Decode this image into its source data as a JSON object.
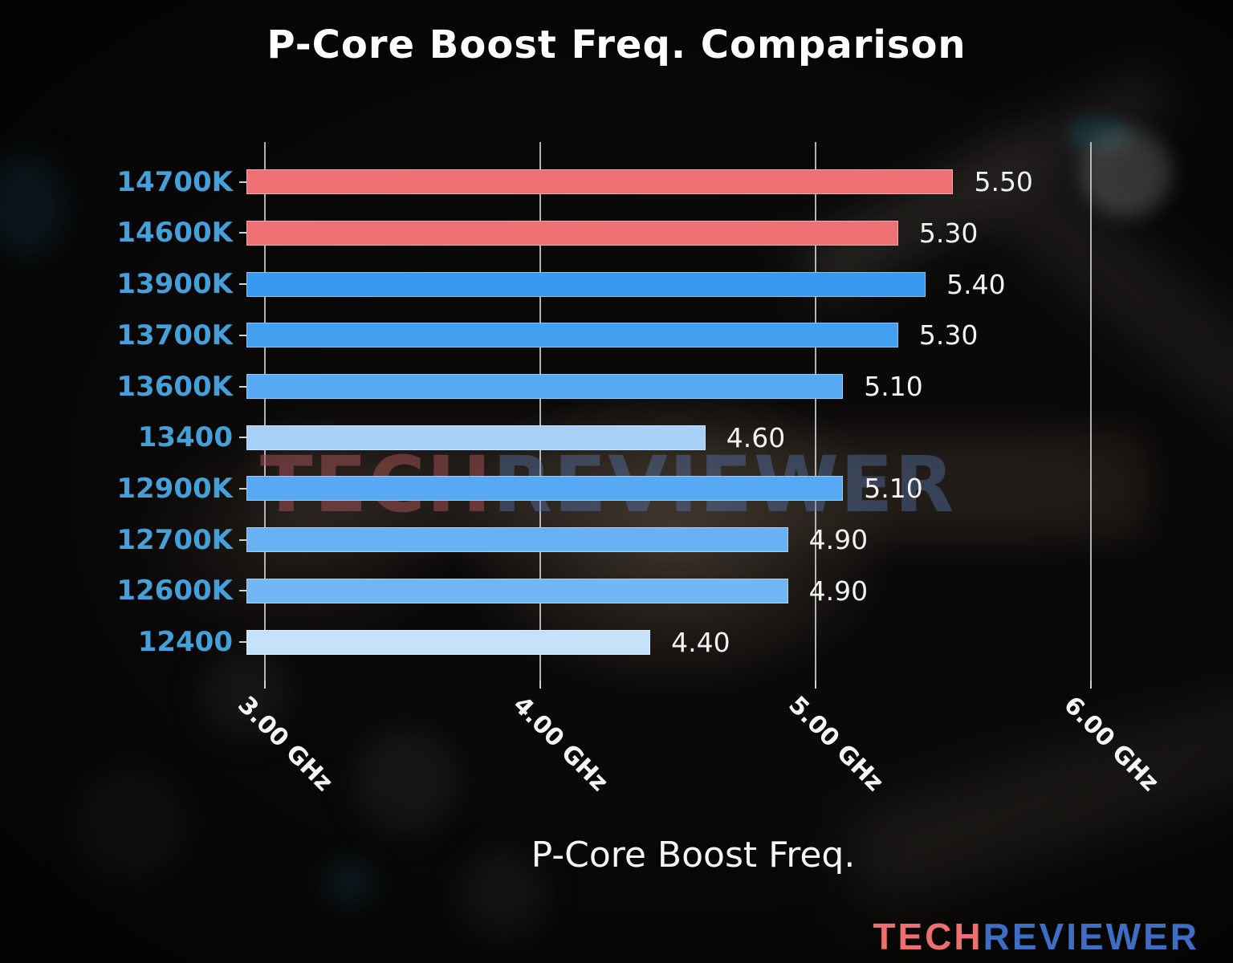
{
  "chart_data": {
    "type": "bar",
    "orientation": "horizontal",
    "title": "P-Core Boost Freq. Comparison",
    "xlabel": "P-Core Boost Freq.",
    "categories": [
      "14700K",
      "14600K",
      "13900K",
      "13700K",
      "13600K",
      "13400",
      "12900K",
      "12700K",
      "12600K",
      "12400"
    ],
    "values": [
      5.5,
      5.3,
      5.4,
      5.3,
      5.1,
      4.6,
      5.1,
      4.9,
      4.9,
      4.4
    ],
    "value_labels": [
      "5.50",
      "5.30",
      "5.40",
      "5.30",
      "5.10",
      "4.60",
      "5.10",
      "4.90",
      "4.90",
      "4.40"
    ],
    "bar_colors": [
      "#ed7172",
      "#ed7172",
      "#3799f0",
      "#42a0f1",
      "#56a9f2",
      "#a7d0f7",
      "#56a9f2",
      "#68b2f3",
      "#72b7f4",
      "#c6e1fa"
    ],
    "unit": "GHz",
    "x_ticks": [
      {
        "value": 3.0,
        "label": "3.00 GHz"
      },
      {
        "value": 4.0,
        "label": "4.00 GHz"
      },
      {
        "value": 5.0,
        "label": "5.00 GHz"
      },
      {
        "value": 6.0,
        "label": "6.00 GHz"
      }
    ],
    "xlim": [
      2.933,
      6.178
    ],
    "grid": true,
    "legend": "none"
  },
  "colors": {
    "category_label": "#459fd9",
    "value_label": "#f2f2f2",
    "tick_label": "#f5f5f5",
    "gridline": "#d0d0d0",
    "gen14_red": "#ed7172",
    "logo_tech": "#ed6f6f",
    "logo_reviewer": "#3d6ec3"
  },
  "watermark": {
    "tech": "TECH",
    "reviewer": "REVIEWER"
  },
  "logo": {
    "tech": "TECH",
    "reviewer": "REVIEWER"
  }
}
